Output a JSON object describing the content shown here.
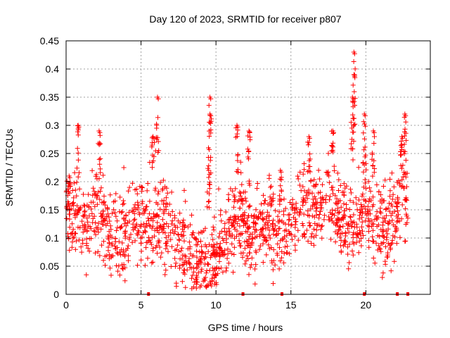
{
  "chart_data": {
    "type": "scatter",
    "title": "Day 120 of 2023, SRMTID for receiver p807",
    "xlabel": "GPS time / hours",
    "ylabel": "SRMTID / TECUs",
    "xlim": [
      0,
      24.3
    ],
    "ylim": [
      0,
      0.45
    ],
    "xticks": [
      0,
      5,
      10,
      15,
      20
    ],
    "xtick_labels": [
      "0",
      "5",
      "10",
      "15",
      "20"
    ],
    "yticks": [
      0,
      0.05,
      0.1,
      0.15,
      0.2,
      0.25,
      0.3,
      0.35,
      0.4,
      0.45
    ],
    "ytick_labels": [
      "0",
      "0.05",
      "0.1",
      "0.15",
      "0.2",
      "0.25",
      "0.3",
      "0.35",
      "0.4",
      "0.45"
    ],
    "grid": true,
    "marker": "+",
    "color": "#ff0000",
    "series": [
      {
        "name": "SRMTID",
        "trend": [
          {
            "x": 0.0,
            "y": 0.14
          },
          {
            "x": 0.5,
            "y": 0.15
          },
          {
            "x": 1.0,
            "y": 0.12
          },
          {
            "x": 1.5,
            "y": 0.13
          },
          {
            "x": 2.0,
            "y": 0.14
          },
          {
            "x": 2.5,
            "y": 0.12
          },
          {
            "x": 3.0,
            "y": 0.1
          },
          {
            "x": 3.5,
            "y": 0.1
          },
          {
            "x": 4.0,
            "y": 0.11
          },
          {
            "x": 4.5,
            "y": 0.13
          },
          {
            "x": 5.0,
            "y": 0.12
          },
          {
            "x": 5.5,
            "y": 0.12
          },
          {
            "x": 6.0,
            "y": 0.14
          },
          {
            "x": 6.5,
            "y": 0.14
          },
          {
            "x": 7.0,
            "y": 0.1
          },
          {
            "x": 7.5,
            "y": 0.08
          },
          {
            "x": 8.0,
            "y": 0.08
          },
          {
            "x": 8.5,
            "y": 0.07
          },
          {
            "x": 9.0,
            "y": 0.06
          },
          {
            "x": 9.5,
            "y": 0.05
          },
          {
            "x": 10.0,
            "y": 0.07
          },
          {
            "x": 10.5,
            "y": 0.1
          },
          {
            "x": 11.0,
            "y": 0.13
          },
          {
            "x": 11.5,
            "y": 0.14
          },
          {
            "x": 12.0,
            "y": 0.12
          },
          {
            "x": 12.5,
            "y": 0.1
          },
          {
            "x": 13.0,
            "y": 0.12
          },
          {
            "x": 13.5,
            "y": 0.13
          },
          {
            "x": 14.0,
            "y": 0.11
          },
          {
            "x": 14.5,
            "y": 0.11
          },
          {
            "x": 15.0,
            "y": 0.12
          },
          {
            "x": 15.5,
            "y": 0.14
          },
          {
            "x": 16.0,
            "y": 0.17
          },
          {
            "x": 16.5,
            "y": 0.15
          },
          {
            "x": 17.0,
            "y": 0.15
          },
          {
            "x": 17.5,
            "y": 0.17
          },
          {
            "x": 18.0,
            "y": 0.15
          },
          {
            "x": 18.5,
            "y": 0.13
          },
          {
            "x": 19.0,
            "y": 0.13
          },
          {
            "x": 19.5,
            "y": 0.12
          },
          {
            "x": 20.0,
            "y": 0.16
          },
          {
            "x": 20.5,
            "y": 0.14
          },
          {
            "x": 21.0,
            "y": 0.13
          },
          {
            "x": 21.5,
            "y": 0.12
          },
          {
            "x": 22.0,
            "y": 0.15
          },
          {
            "x": 22.5,
            "y": 0.18
          },
          {
            "x": 22.8,
            "y": 0.17
          }
        ],
        "spikes": [
          {
            "x": 0.8,
            "y": 0.3
          },
          {
            "x": 2.2,
            "y": 0.29
          },
          {
            "x": 6.1,
            "y": 0.35
          },
          {
            "x": 5.8,
            "y": 0.28
          },
          {
            "x": 9.6,
            "y": 0.35
          },
          {
            "x": 9.6,
            "y": 0.32
          },
          {
            "x": 9.5,
            "y": 0.26
          },
          {
            "x": 11.4,
            "y": 0.3
          },
          {
            "x": 12.2,
            "y": 0.29
          },
          {
            "x": 16.2,
            "y": 0.28
          },
          {
            "x": 17.8,
            "y": 0.29
          },
          {
            "x": 19.2,
            "y": 0.43
          },
          {
            "x": 19.2,
            "y": 0.39
          },
          {
            "x": 19.1,
            "y": 0.35
          },
          {
            "x": 19.9,
            "y": 0.32
          },
          {
            "x": 20.5,
            "y": 0.29
          },
          {
            "x": 22.6,
            "y": 0.32
          },
          {
            "x": 22.4,
            "y": 0.28
          },
          {
            "x": 0.2,
            "y": 0.21
          },
          {
            "x": 14.3,
            "y": 0.22
          }
        ],
        "lows": [
          {
            "x": 9.7,
            "y": 0.015
          },
          {
            "x": 9.3,
            "y": 0.03
          },
          {
            "x": 6.6,
            "y": 0.035
          },
          {
            "x": 21.1,
            "y": 0.03
          },
          {
            "x": 12.6,
            "y": 0.045
          },
          {
            "x": 3.8,
            "y": 0.045
          }
        ],
        "axis_markers_x": [
          5.5,
          11.8,
          14.4,
          19.9,
          22.1,
          22.8
        ]
      }
    ]
  }
}
